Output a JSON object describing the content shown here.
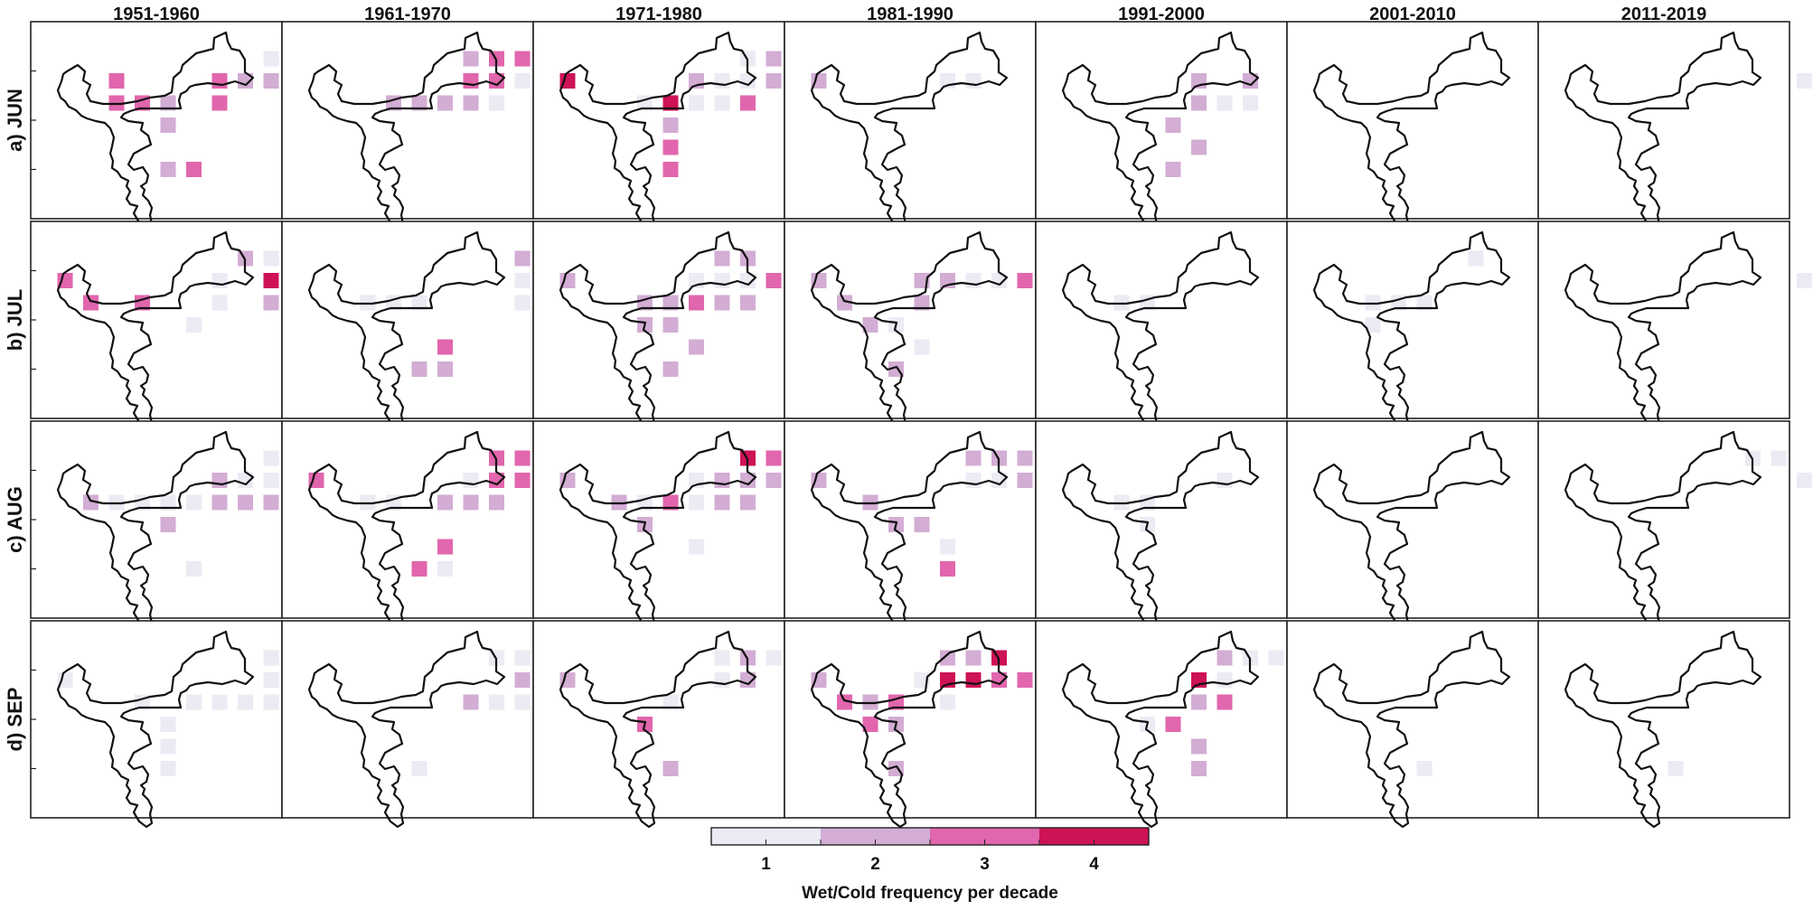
{
  "chart_data": {
    "type": "heatmap",
    "columns": [
      "1951-1960",
      "1961-1970",
      "1971-1980",
      "1981-1990",
      "1991-2000",
      "2001-2010",
      "2011-2019"
    ],
    "rows": [
      "a) JUN",
      "b) JUL",
      "c) AUG",
      "d) SEP"
    ],
    "colorbar": {
      "label": "Wet/Cold frequency per decade",
      "ticks": [
        "1",
        "2",
        "3",
        "4"
      ],
      "levels": [
        1,
        2,
        3,
        4
      ],
      "colors": [
        "#ECEAF3",
        "#D3ADD4",
        "#E166AD",
        "#CE1256"
      ]
    },
    "grid": {
      "cols": [
        "c0",
        "c1",
        "c2",
        "c3",
        "c4",
        "c5",
        "c6",
        "c7",
        "c8"
      ],
      "rows": [
        "r0",
        "r1",
        "r2",
        "r3",
        "r4",
        "r5"
      ],
      "key_format": "row,col"
    },
    "panels": [
      [
        {
          "1,2": 3,
          "2,2": 3,
          "2,3": 3,
          "2,4": 2,
          "2,6": 3,
          "1,6": 3,
          "1,7": 2,
          "1,8": 2,
          "0,8": 1,
          "1,9": 1,
          "3,4": 2,
          "5,4": 2,
          "5,5": 3
        },
        {
          "0,6": 2,
          "0,7": 3,
          "0,8": 3,
          "1,6": 3,
          "1,7": 3,
          "1,8": 1,
          "1,9": 1,
          "2,3": 2,
          "2,4": 2,
          "2,5": 2,
          "2,6": 2,
          "2,7": 1
        },
        {
          "1,0": 4,
          "2,3": 1,
          "2,4": 4,
          "2,5": 1,
          "2,6": 1,
          "2,7": 3,
          "1,5": 2,
          "1,6": 1,
          "1,7": 1,
          "1,8": 2,
          "0,7": 1,
          "0,8": 2,
          "3,4": 2,
          "4,4": 3,
          "5,4": 3
        },
        {
          "1,0": 2,
          "1,5": 1,
          "1,6": 1,
          "1,9": 1
        },
        {
          "1,5": 2,
          "1,7": 2,
          "2,5": 2,
          "2,6": 1,
          "2,7": 1,
          "3,4": 2,
          "4,5": 2,
          "5,4": 2
        },
        {},
        {
          "1,9": 1
        }
      ],
      [
        {
          "1,0": 3,
          "2,1": 3,
          "2,3": 3,
          "0,7": 2,
          "0,8": 1,
          "0,9": 2,
          "1,8": 4,
          "1,9": 2,
          "2,8": 2,
          "2,6": 1,
          "1,6": 1,
          "3,5": 1
        },
        {
          "0,8": 2,
          "0,9": 2,
          "1,8": 1,
          "1,9": 2,
          "2,8": 1,
          "2,2": 1,
          "2,3": 1,
          "2,4": 1,
          "4,5": 3,
          "5,4": 2,
          "5,5": 2
        },
        {
          "1,0": 2,
          "2,3": 2,
          "2,4": 2,
          "2,5": 3,
          "2,6": 2,
          "2,7": 2,
          "1,5": 1,
          "1,6": 1,
          "1,7": 1,
          "1,8": 3,
          "0,6": 2,
          "0,7": 2,
          "3,3": 2,
          "3,4": 2,
          "4,5": 2,
          "5,4": 2
        },
        {
          "1,0": 2,
          "2,1": 2,
          "3,2": 2,
          "3,3": 1,
          "2,4": 2,
          "1,4": 2,
          "1,5": 2,
          "1,6": 1,
          "1,7": 1,
          "1,8": 3,
          "4,4": 1,
          "5,3": 2
        },
        {
          "2,2": 1,
          "2,3": 1
        },
        {
          "2,2": 1,
          "2,3": 1,
          "2,4": 1,
          "3,2": 1,
          "0,6": 1
        },
        {
          "1,9": 1
        }
      ],
      [
        {
          "2,1": 2,
          "2,2": 1,
          "2,3": 1,
          "2,4": 1,
          "2,5": 1,
          "2,6": 2,
          "2,7": 2,
          "2,8": 2,
          "1,6": 2,
          "1,7": 1,
          "1,8": 1,
          "0,8": 1,
          "3,4": 2,
          "5,5": 1
        },
        {
          "1,0": 3,
          "2,2": 1,
          "2,3": 1,
          "2,5": 2,
          "2,6": 2,
          "2,7": 2,
          "1,6": 1,
          "1,7": 3,
          "1,8": 3,
          "0,7": 3,
          "0,8": 3,
          "4,5": 3,
          "5,4": 3,
          "5,5": 1
        },
        {
          "1,0": 2,
          "2,2": 2,
          "2,3": 1,
          "2,4": 3,
          "2,5": 1,
          "2,6": 2,
          "2,7": 2,
          "1,5": 1,
          "1,6": 2,
          "1,7": 2,
          "1,8": 2,
          "1,9": 2,
          "0,7": 4,
          "0,8": 3,
          "3,3": 2,
          "4,5": 1
        },
        {
          "1,0": 2,
          "2,2": 2,
          "3,3": 2,
          "3,4": 2,
          "1,6": 1,
          "1,7": 1,
          "1,8": 2,
          "0,6": 2,
          "0,7": 2,
          "0,8": 2,
          "4,5": 1,
          "5,5": 3
        },
        {
          "1,6": 1,
          "2,2": 1,
          "2,3": 1,
          "3,3": 1
        },
        {
          "1,9": 1
        },
        {
          "0,7": 1,
          "0,8": 1,
          "1,9": 1
        }
      ],
      [
        {
          "1,0": 1,
          "2,3": 1,
          "2,5": 1,
          "2,6": 1,
          "2,7": 1,
          "2,8": 1,
          "1,8": 1,
          "0,8": 1,
          "3,4": 1,
          "4,4": 1,
          "5,4": 1
        },
        {
          "0,7": 1,
          "0,8": 1,
          "0,9": 1,
          "1,8": 2,
          "2,6": 2,
          "2,7": 1,
          "2,8": 1,
          "2,9": 1,
          "5,4": 1
        },
        {
          "1,0": 2,
          "2,4": 1,
          "3,3": 3,
          "0,6": 1,
          "0,7": 2,
          "0,8": 1,
          "1,6": 1,
          "1,7": 2,
          "5,4": 2
        },
        {
          "1,0": 2,
          "2,1": 3,
          "2,2": 2,
          "2,3": 3,
          "3,2": 3,
          "3,3": 2,
          "1,4": 1,
          "1,5": 4,
          "1,6": 4,
          "1,7": 3,
          "1,8": 3,
          "0,5": 2,
          "0,6": 2,
          "0,7": 4,
          "2,5": 1,
          "5,3": 2
        },
        {
          "1,5": 4,
          "0,6": 2,
          "0,7": 1,
          "0,8": 1,
          "1,6": 1,
          "2,6": 3,
          "2,5": 2,
          "3,3": 1,
          "3,4": 3,
          "4,5": 2,
          "5,5": 2
        },
        {
          "5,4": 1
        },
        {
          "5,4": 1
        }
      ]
    ]
  }
}
